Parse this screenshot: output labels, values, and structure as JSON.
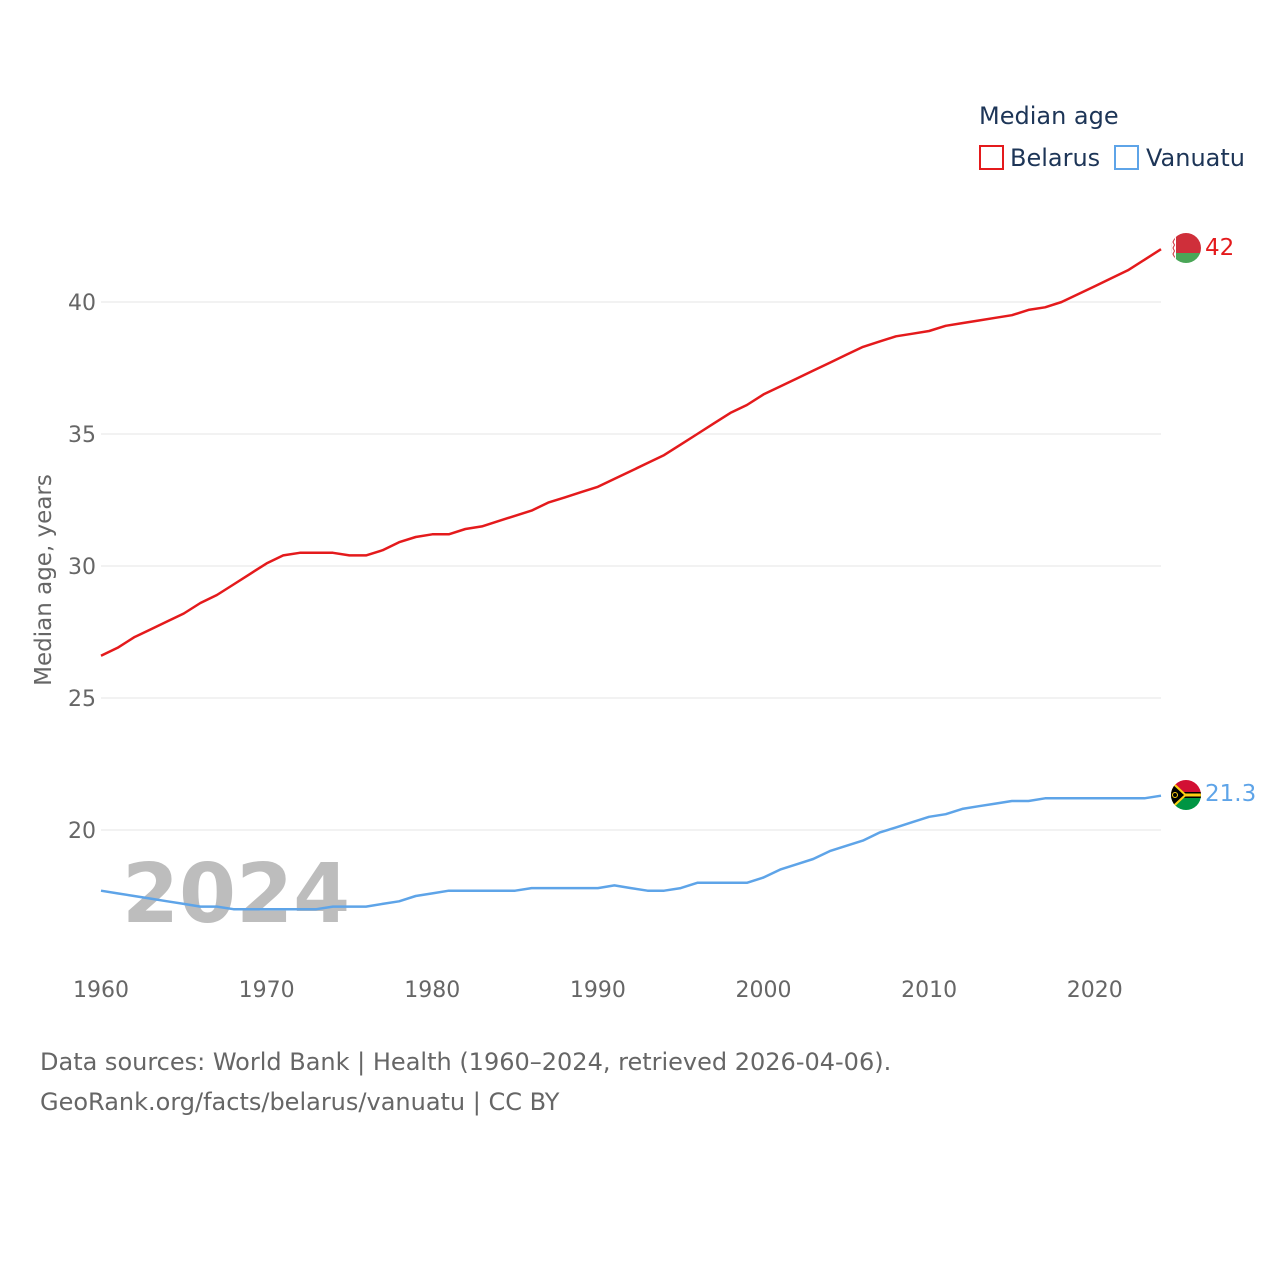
{
  "chart_data": {
    "type": "line",
    "legend_title": "Median age",
    "ylabel": "Median age, years",
    "xlabel": "",
    "xlim": [
      1960,
      2024
    ],
    "ylim": [
      15,
      43
    ],
    "yticks": [
      "20",
      "25",
      "30",
      "35",
      "40"
    ],
    "xticks": [
      "1960",
      "1970",
      "1980",
      "1990",
      "2000",
      "2010",
      "2020"
    ],
    "year_label": "2024",
    "legend_position": "top-right",
    "series": [
      {
        "name": "Belarus",
        "color": "#e41a1c",
        "end_label": "42",
        "x": [
          1960,
          1961,
          1962,
          1963,
          1964,
          1965,
          1966,
          1967,
          1968,
          1969,
          1970,
          1971,
          1972,
          1973,
          1974,
          1975,
          1976,
          1977,
          1978,
          1979,
          1980,
          1981,
          1982,
          1983,
          1984,
          1985,
          1986,
          1987,
          1988,
          1989,
          1990,
          1991,
          1992,
          1993,
          1994,
          1995,
          1996,
          1997,
          1998,
          1999,
          2000,
          2001,
          2002,
          2003,
          2004,
          2005,
          2006,
          2007,
          2008,
          2009,
          2010,
          2011,
          2012,
          2013,
          2014,
          2015,
          2016,
          2017,
          2018,
          2019,
          2020,
          2021,
          2022,
          2023,
          2024
        ],
        "values": [
          26.6,
          26.9,
          27.3,
          27.6,
          27.9,
          28.2,
          28.6,
          28.9,
          29.3,
          29.7,
          30.1,
          30.4,
          30.5,
          30.5,
          30.5,
          30.4,
          30.4,
          30.6,
          30.9,
          31.1,
          31.2,
          31.2,
          31.4,
          31.5,
          31.7,
          31.9,
          32.1,
          32.4,
          32.6,
          32.8,
          33.0,
          33.3,
          33.6,
          33.9,
          34.2,
          34.6,
          35.0,
          35.4,
          35.8,
          36.1,
          36.5,
          36.8,
          37.1,
          37.4,
          37.7,
          38.0,
          38.3,
          38.5,
          38.7,
          38.8,
          38.9,
          39.1,
          39.2,
          39.3,
          39.4,
          39.5,
          39.7,
          39.8,
          40.0,
          40.3,
          40.6,
          40.9,
          41.2,
          41.6,
          42.0
        ]
      },
      {
        "name": "Vanuatu",
        "color": "#5ea4e8",
        "end_label": "21.3",
        "x": [
          1960,
          1961,
          1962,
          1963,
          1964,
          1965,
          1966,
          1967,
          1968,
          1969,
          1970,
          1971,
          1972,
          1973,
          1974,
          1975,
          1976,
          1977,
          1978,
          1979,
          1980,
          1981,
          1982,
          1983,
          1984,
          1985,
          1986,
          1987,
          1988,
          1989,
          1990,
          1991,
          1992,
          1993,
          1994,
          1995,
          1996,
          1997,
          1998,
          1999,
          2000,
          2001,
          2002,
          2003,
          2004,
          2005,
          2006,
          2007,
          2008,
          2009,
          2010,
          2011,
          2012,
          2013,
          2014,
          2015,
          2016,
          2017,
          2018,
          2019,
          2020,
          2021,
          2022,
          2023,
          2024
        ],
        "values": [
          17.7,
          17.6,
          17.5,
          17.4,
          17.3,
          17.2,
          17.1,
          17.1,
          17.0,
          17.0,
          17.0,
          17.0,
          17.0,
          17.0,
          17.1,
          17.1,
          17.1,
          17.2,
          17.3,
          17.5,
          17.6,
          17.7,
          17.7,
          17.7,
          17.7,
          17.7,
          17.8,
          17.8,
          17.8,
          17.8,
          17.8,
          17.9,
          17.8,
          17.7,
          17.7,
          17.8,
          18.0,
          18.0,
          18.0,
          18.0,
          18.2,
          18.5,
          18.7,
          18.9,
          19.2,
          19.4,
          19.6,
          19.9,
          20.1,
          20.3,
          20.5,
          20.6,
          20.8,
          20.9,
          21.0,
          21.1,
          21.1,
          21.2,
          21.2,
          21.2,
          21.2,
          21.2,
          21.2,
          21.2,
          21.3
        ]
      }
    ]
  },
  "source": {
    "line1": "Data sources: World Bank | Health (1960–2024, retrieved 2026-04-06).",
    "line2": "GeoRank.org/facts/belarus/vanuatu | CC BY"
  },
  "icons": {
    "belarus": "belarus-flag-icon",
    "vanuatu": "vanuatu-flag-icon"
  }
}
